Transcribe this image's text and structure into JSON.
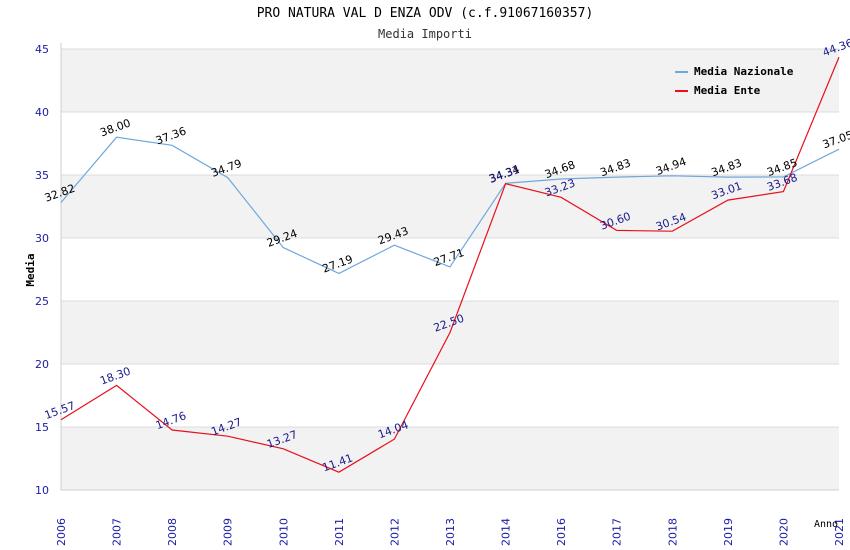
{
  "chart_data": {
    "type": "line",
    "title": "PRO NATURA VAL D ENZA ODV (c.f.91067160357)",
    "subtitle": "Media Importi",
    "xlabel": "Anno",
    "ylabel": "Media",
    "ylim": [
      10,
      45
    ],
    "yticks": [
      "10",
      "15",
      "20",
      "25",
      "30",
      "35",
      "40",
      "45"
    ],
    "categories": [
      "2006",
      "2007",
      "2008",
      "2009",
      "2010",
      "2011",
      "2012",
      "2013",
      "2014",
      "2016",
      "2017",
      "2018",
      "2019",
      "2020",
      "2021"
    ],
    "legend_position": "top-right",
    "grid": "horizontal bands",
    "series": [
      {
        "name": "Media Nazionale",
        "color": "#6fa8dc",
        "label_color": "#000000",
        "values": [
          32.82,
          38.0,
          37.36,
          34.79,
          29.24,
          27.19,
          29.43,
          27.71,
          34.34,
          34.68,
          34.83,
          34.94,
          34.83,
          34.85,
          37.05
        ],
        "labels": [
          "32.82",
          "38.00",
          "37.36",
          "34.79",
          "29.24",
          "27.19",
          "29.43",
          "27.71",
          "34.34",
          "34.68",
          "34.83",
          "34.94",
          "34.83",
          "34.85",
          "37.05"
        ]
      },
      {
        "name": "Media Ente",
        "color": "#e8101a",
        "label_color": "#1a1a8c",
        "values": [
          15.57,
          18.3,
          14.76,
          14.27,
          13.27,
          11.41,
          14.04,
          22.5,
          34.31,
          33.23,
          30.6,
          30.54,
          33.01,
          33.68,
          44.36
        ],
        "labels": [
          "15.57",
          "18.30",
          "14.76",
          "14.27",
          "13.27",
          "11.41",
          "14.04",
          "22.50",
          "34.31",
          "33.23",
          "30.60",
          "30.54",
          "33.01",
          "33.68",
          "44.36"
        ]
      }
    ]
  }
}
